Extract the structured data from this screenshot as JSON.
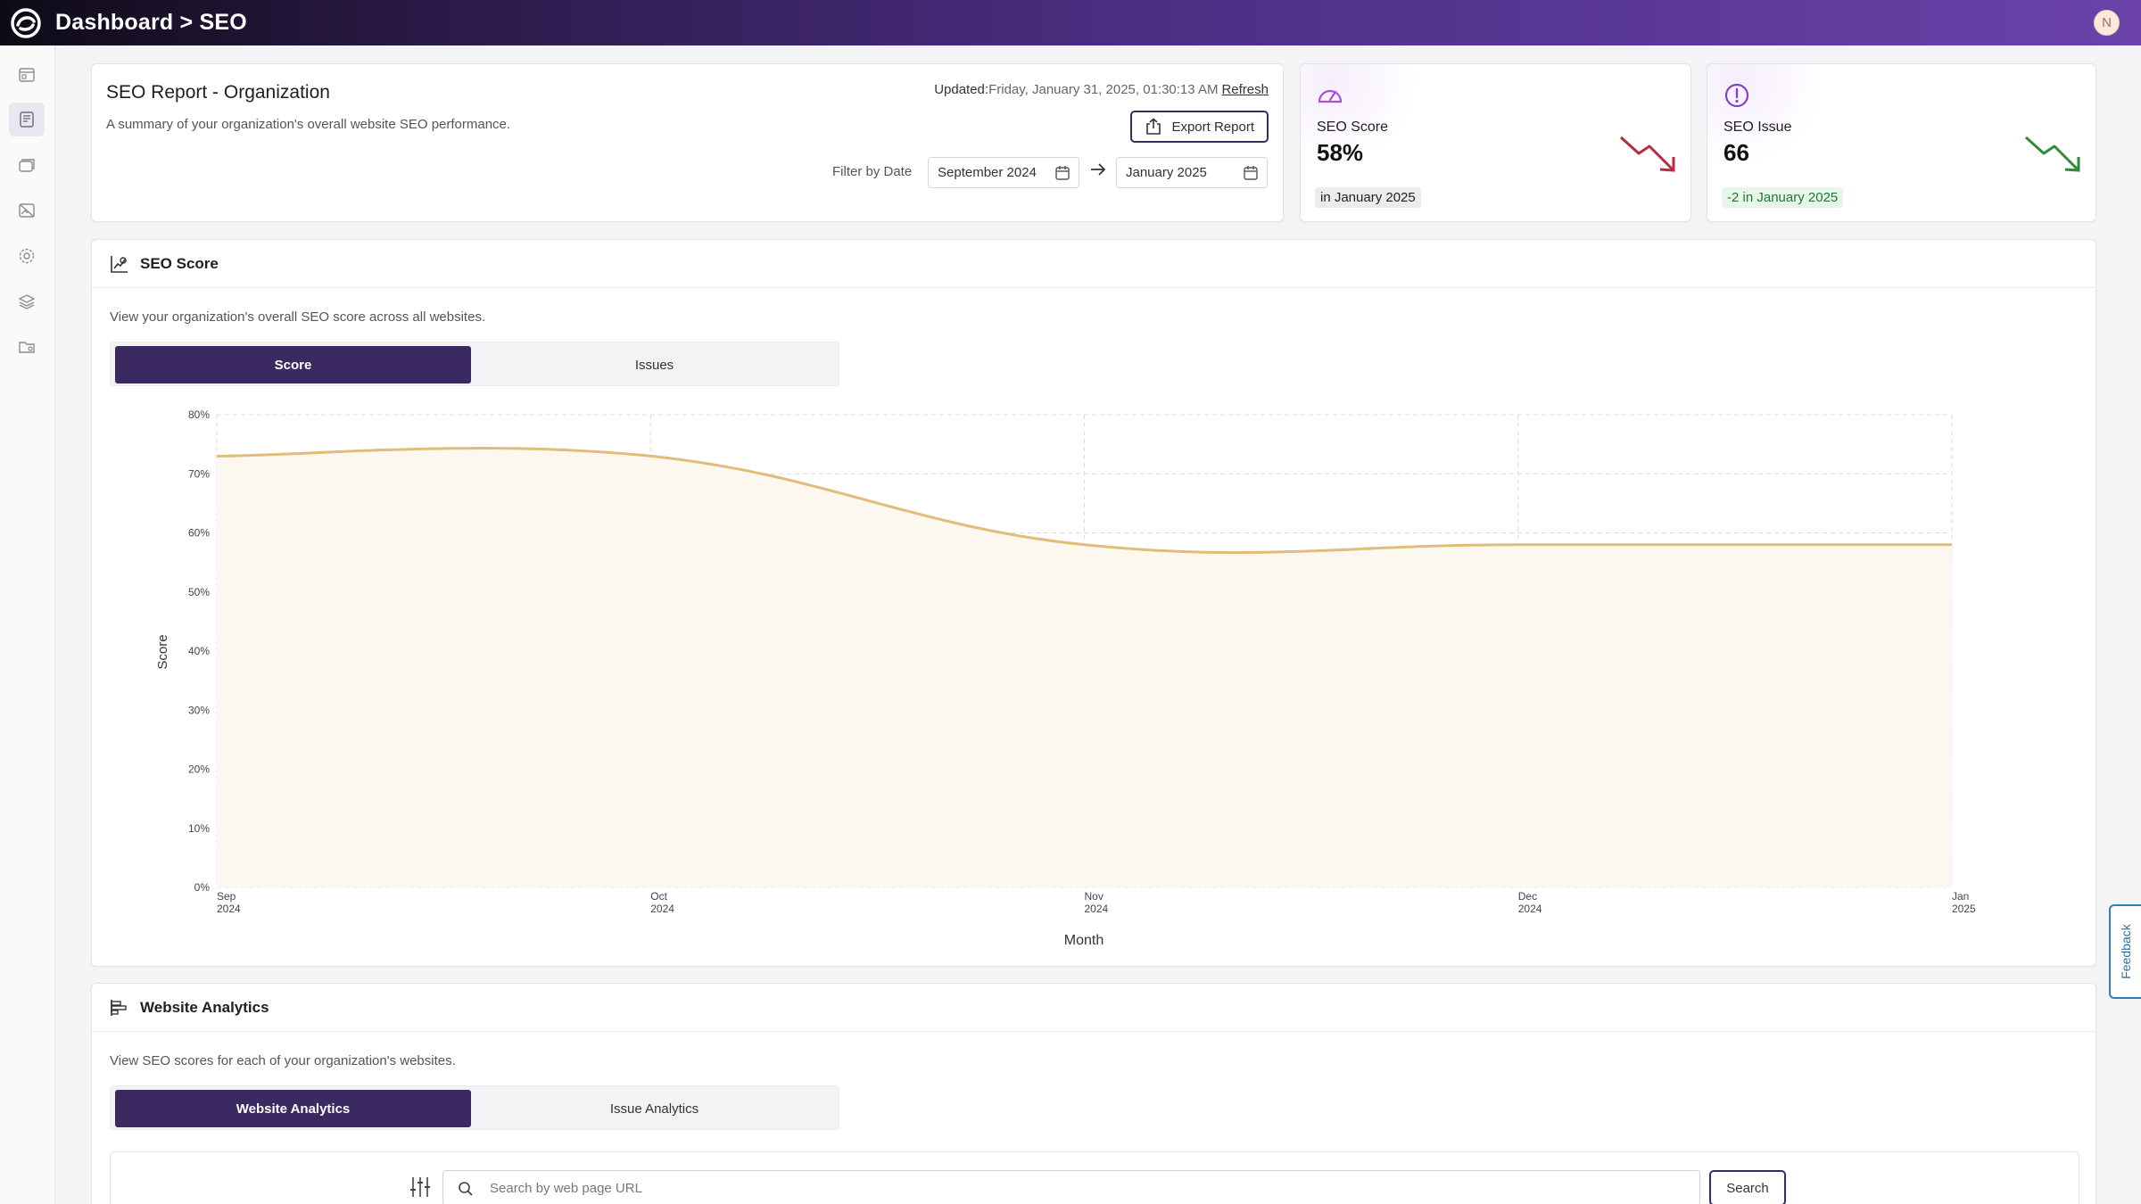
{
  "header": {
    "breadcrumb": "Dashboard > SEO",
    "avatar_initial": "N"
  },
  "sidebar": {
    "items": [
      "dashboard-icon",
      "report-icon",
      "cards-icon",
      "image-off-icon",
      "settings-icon",
      "layers-icon",
      "folder-settings-icon"
    ]
  },
  "report": {
    "title": "SEO Report - Organization",
    "subtitle": "A summary of your organization's overall website SEO performance.",
    "updated_label": "Updated:",
    "updated_value": "Friday, January 31, 2025, 01:30:13 AM",
    "refresh": "Refresh",
    "export": "Export Report",
    "filter_label": "Filter by Date",
    "date_from": "September 2024",
    "date_to": "January 2025"
  },
  "stats": {
    "score": {
      "label": "SEO Score",
      "value": "58%",
      "pill": "in January 2025",
      "trend_color": "#c0283b"
    },
    "issue": {
      "label": "SEO Issue",
      "value": "66",
      "pill": "-2 in January 2025",
      "trend_color": "#2f8a3a"
    }
  },
  "seo_section": {
    "title": "SEO Score",
    "description": "View your organization's overall SEO score across all websites.",
    "tab_active": "Score",
    "tab_inactive": "Issues"
  },
  "chart_data": {
    "type": "area",
    "title": "SEO Score",
    "xlabel": "Month",
    "ylabel": "Score",
    "ylim": [
      0,
      80
    ],
    "yticks": [
      "0%",
      "10%",
      "20%",
      "30%",
      "40%",
      "50%",
      "60%",
      "70%",
      "80%"
    ],
    "x": [
      {
        "month": "Sep",
        "year": "2024"
      },
      {
        "month": "Oct",
        "year": "2024"
      },
      {
        "month": "Nov",
        "year": "2024"
      },
      {
        "month": "Dec",
        "year": "2024"
      },
      {
        "month": "Jan",
        "year": "2025"
      }
    ],
    "values": [
      73,
      73,
      58,
      58,
      58
    ],
    "line_color": "#e2bd7a",
    "fill_color": "#fdf8ef"
  },
  "analytics_section": {
    "title": "Website Analytics",
    "description": "View SEO scores for each of your organization's websites.",
    "tab_active": "Website Analytics",
    "tab_inactive": "Issue Analytics",
    "search_placeholder": "Search by web page URL",
    "search_button": "Search"
  },
  "feedback": "Feedback"
}
